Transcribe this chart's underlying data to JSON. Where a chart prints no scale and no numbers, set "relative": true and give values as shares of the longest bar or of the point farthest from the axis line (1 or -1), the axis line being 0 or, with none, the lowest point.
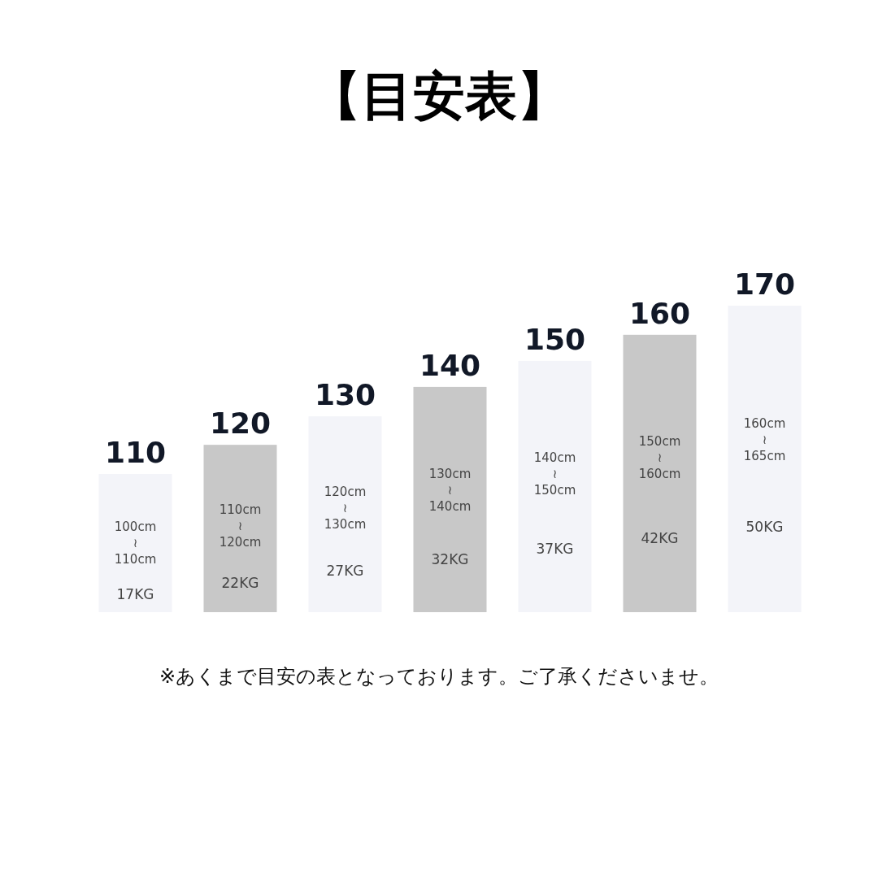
{
  "chart_data": {
    "type": "bar",
    "title": "【目安表】",
    "relative": true,
    "categories": [
      "110",
      "120",
      "130",
      "140",
      "150",
      "160",
      "170"
    ],
    "values": [
      0.451,
      0.546,
      0.639,
      0.735,
      0.82,
      0.905,
      1
    ],
    "colors": [
      "#f3f4f9",
      "#c8c8c8",
      "#f3f4f9",
      "#c8c8c8",
      "#f3f4f9",
      "#c8c8c8",
      "#f3f4f9"
    ],
    "annotations": [
      "100cm\n≀\n110cm",
      "17KG",
      "110cm\n≀\n120cm",
      "22KG",
      "120cm\n≀\n130cm",
      "27KG",
      "130cm\n≀\n140cm",
      "32KG",
      "140cm\n≀\n150cm",
      "37KG",
      "150cm\n≀\n160cm",
      "42KG",
      "160cm\n≀\n165cm",
      "50KG",
      "※あくまで目安の表となっております。ご了承くださいませ。"
    ]
  }
}
